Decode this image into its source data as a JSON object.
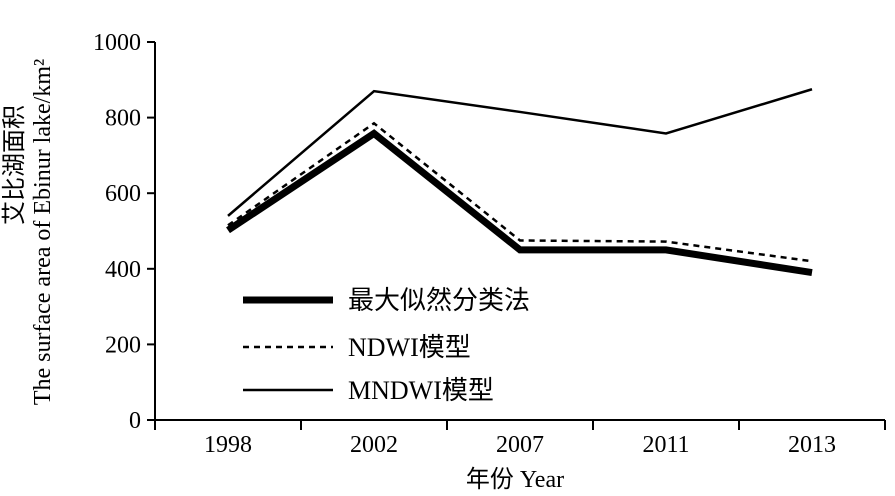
{
  "chart_data": {
    "type": "line",
    "categories": [
      "1998",
      "2002",
      "2007",
      "2011",
      "2013"
    ],
    "series": [
      {
        "name": "最大似然分类法",
        "values": [
          502,
          758,
          450,
          450,
          390
        ],
        "color": "#000000",
        "style": "thick-solid"
      },
      {
        "name": "NDWI模型",
        "values": [
          515,
          785,
          475,
          472,
          420
        ],
        "color": "#000000",
        "style": "dotted"
      },
      {
        "name": "MNDWI模型",
        "values": [
          540,
          870,
          815,
          758,
          875
        ],
        "color": "#000000",
        "style": "solid"
      }
    ],
    "xlabel": "年份 Year",
    "ylabel": [
      "艾比湖面积",
      "The surface area of Ebinur lake/km²"
    ],
    "ylim": [
      0,
      1000
    ],
    "yticks": [
      "0",
      "200",
      "400",
      "600",
      "800",
      "1000"
    ],
    "grid": false,
    "legend_position": "lower-left inside"
  }
}
